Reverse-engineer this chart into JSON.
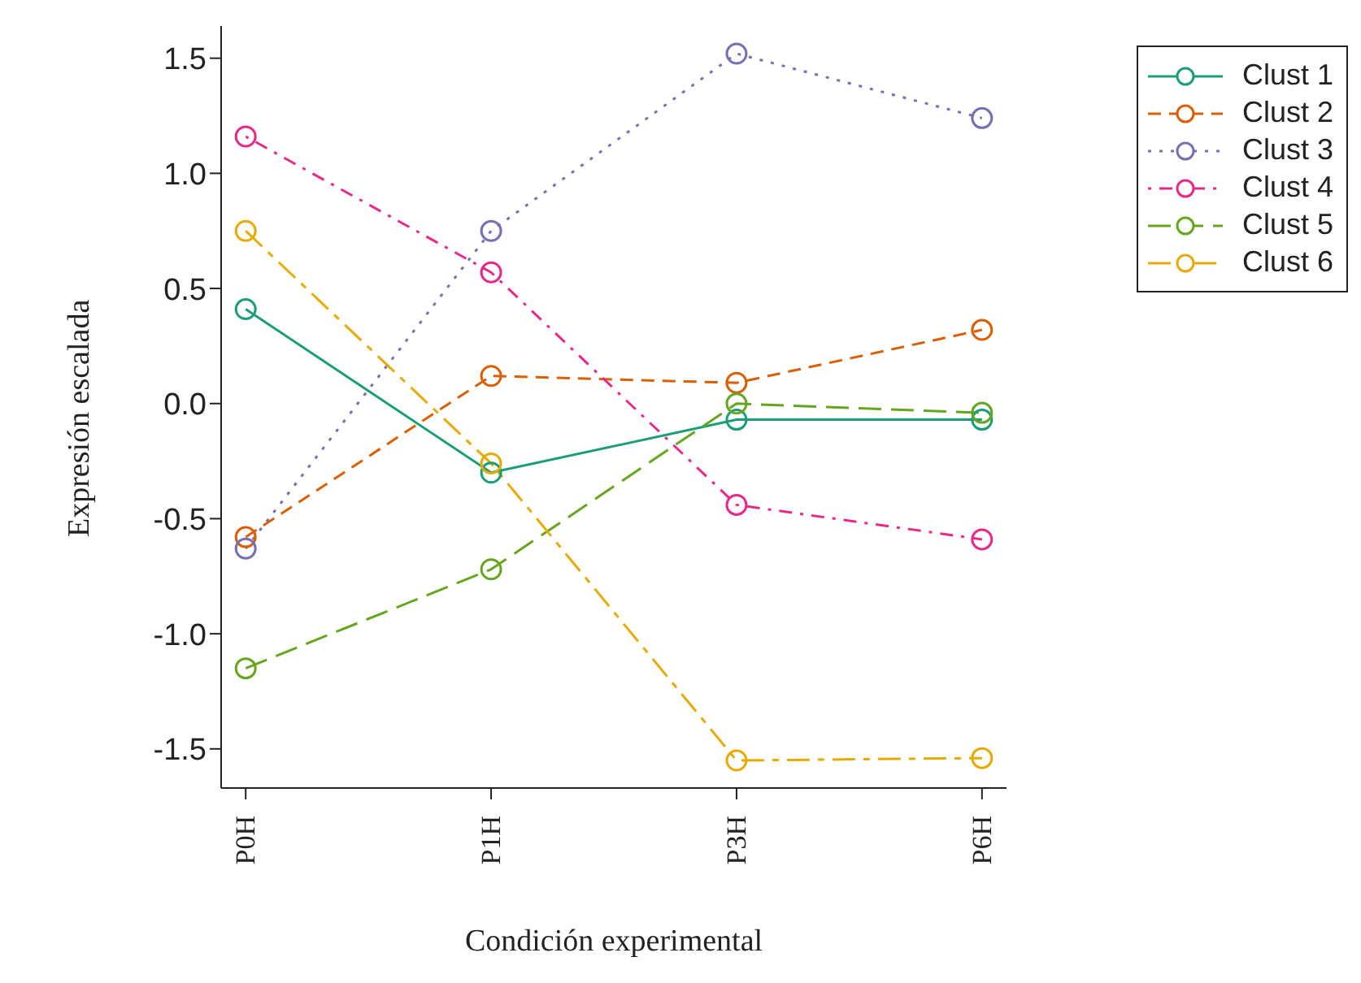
{
  "chart_data": {
    "type": "line",
    "xlabel": "Condición experimental",
    "ylabel": "Expresión escalada",
    "categories": [
      "P0H",
      "P1H",
      "P3H",
      "P6H"
    ],
    "series": [
      {
        "name": "Clust 1",
        "color": "#1b9e77",
        "line_style": "solid",
        "values": [
          0.41,
          -0.3,
          -0.07,
          -0.07
        ]
      },
      {
        "name": "Clust 2",
        "color": "#d95f02",
        "line_style": "dashed",
        "values": [
          -0.58,
          0.12,
          0.09,
          0.32
        ]
      },
      {
        "name": "Clust 3",
        "color": "#7570b3",
        "line_style": "dotted",
        "values": [
          -0.63,
          0.75,
          1.52,
          1.24
        ]
      },
      {
        "name": "Clust 4",
        "color": "#e7298a",
        "line_style": "dashed",
        "values": [
          1.16,
          0.57,
          -0.44,
          -0.59
        ]
      },
      {
        "name": "Clust 5",
        "color": "#66a61e",
        "line_style": "dashed",
        "values": [
          -1.15,
          -0.72,
          0.0,
          -0.04
        ]
      },
      {
        "name": "Clust 6",
        "color": "#e6ab02",
        "line_style": "dashed",
        "values": [
          0.75,
          -0.26,
          -1.55,
          -1.54
        ]
      }
    ],
    "ylim": [
      -1.67,
      1.64
    ],
    "yticks": [
      {
        "value": -1.5,
        "label": "-1.5"
      },
      {
        "value": -1,
        "label": "-1.0"
      },
      {
        "value": -0.5,
        "label": "-0.5"
      },
      {
        "value": 0,
        "label": "0.0"
      },
      {
        "value": 0.5,
        "label": "0.5"
      },
      {
        "value": 1,
        "label": "1.0"
      },
      {
        "value": 1.5,
        "label": "1.5"
      }
    ],
    "grid": false,
    "legend": "top right",
    "marker": "circle"
  }
}
